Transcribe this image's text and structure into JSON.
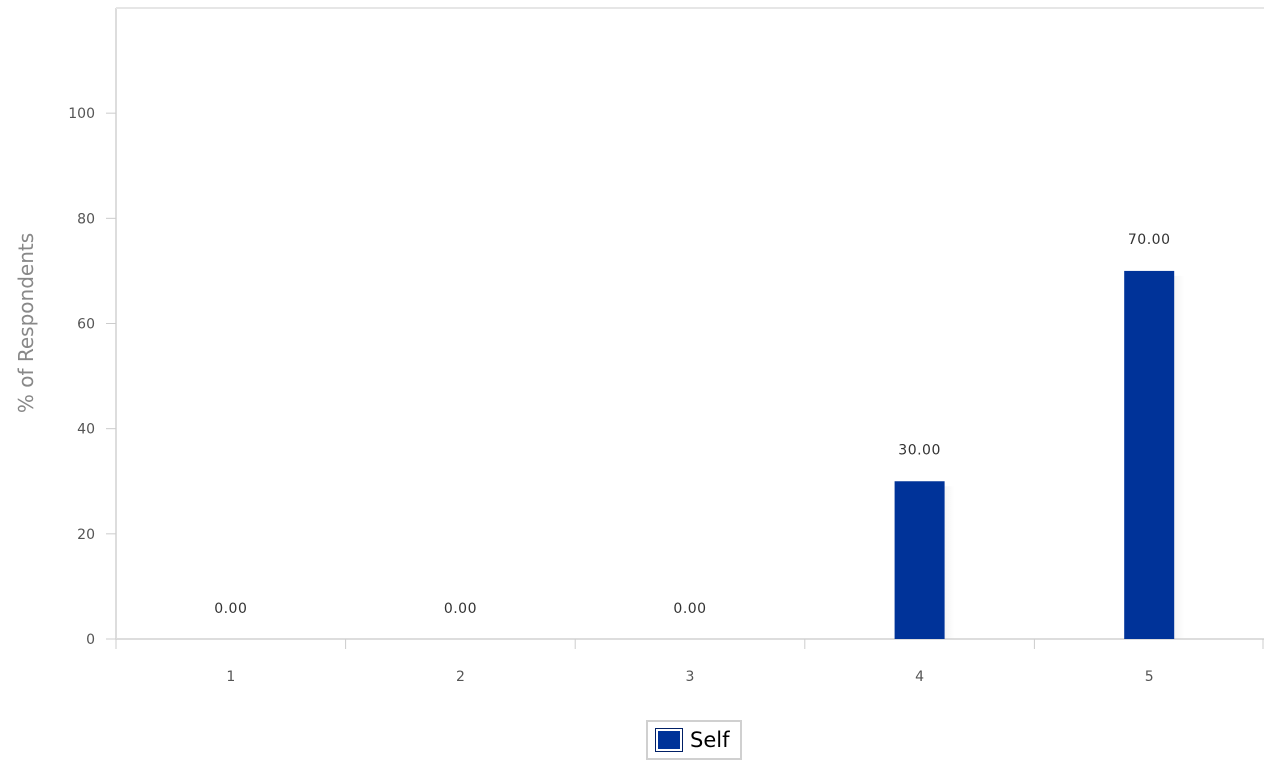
{
  "chart_data": {
    "type": "bar",
    "categories": [
      "1",
      "2",
      "3",
      "4",
      "5"
    ],
    "series": [
      {
        "name": "Self",
        "values": [
          0.0,
          0.0,
          0.0,
          30.0,
          70.0
        ],
        "labels": [
          "0.00",
          "0.00",
          "0.00",
          "30.00",
          "70.00"
        ],
        "color": "#003399"
      }
    ],
    "xlabel": "",
    "ylabel": "% of Respondents",
    "ylim": [
      0,
      120
    ],
    "yticks": [
      0,
      20,
      40,
      60,
      80,
      100
    ],
    "ytick_labels": [
      "0",
      "20",
      "40",
      "60",
      "80",
      "100"
    ],
    "grid": false,
    "legend_position": "bottom-center"
  }
}
